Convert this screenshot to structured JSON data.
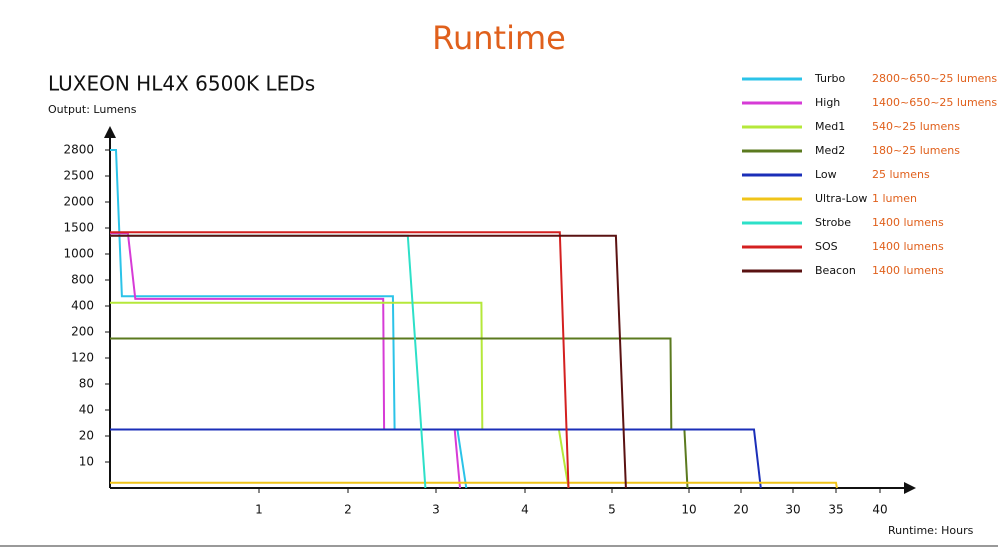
{
  "chart_data": {
    "type": "line",
    "title": "Runtime",
    "subtitle": "LUXEON HL4X 6500K LEDs",
    "y_label": "Output: Lumens",
    "x_label": "Runtime: Hours",
    "xlim": [
      0,
      40
    ],
    "ylim": [
      0,
      2800
    ],
    "xticks": [
      1,
      2,
      3,
      4,
      5,
      10,
      20,
      30,
      35,
      40
    ],
    "yticks": [
      10,
      20,
      40,
      80,
      120,
      200,
      400,
      800,
      1000,
      1500,
      2000,
      2500,
      2800
    ],
    "series": [
      {
        "name": "Turbo",
        "note": "2800~650~25 lumens",
        "color": "#2bc3e8",
        "x": [
          0,
          0.04,
          0.08,
          2.51,
          2.53,
          3.24,
          3.34
        ],
        "values": [
          2800,
          2800,
          550,
          550,
          25,
          25,
          0
        ]
      },
      {
        "name": "High",
        "note": "1400~650~25 lumens",
        "color": "#d63bd6",
        "x": [
          0,
          0.12,
          0.17,
          2.4,
          2.41,
          3.21,
          3.27
        ],
        "values": [
          1400,
          1400,
          510,
          510,
          25,
          25,
          0
        ]
      },
      {
        "name": "Med1",
        "note": "540~25 lumens",
        "color": "#b5e83a",
        "x": [
          0,
          3.51,
          3.52,
          4.39,
          4.5
        ],
        "values": [
          450,
          450,
          25,
          25,
          0
        ]
      },
      {
        "name": "Med2",
        "note": "180~25 lumens",
        "color": "#5b7a1f",
        "x": [
          0,
          8.8,
          8.85,
          9.7,
          9.9
        ],
        "values": [
          180,
          180,
          25,
          25,
          0
        ]
      },
      {
        "name": "Low",
        "note": "25 lumens",
        "color": "#1b2fb8",
        "x": [
          0,
          22.5,
          23.8
        ],
        "values": [
          25,
          25,
          0
        ]
      },
      {
        "name": "Ultra-Low",
        "note": "1 lumen",
        "color": "#f0c419",
        "x": [
          0,
          35,
          35.1
        ],
        "values": [
          2,
          2,
          0
        ]
      },
      {
        "name": "Strobe",
        "note": "1400 lumens",
        "color": "#2de0c8",
        "x": [
          0,
          2.68,
          2.88
        ],
        "values": [
          1350,
          1350,
          0
        ]
      },
      {
        "name": "SOS",
        "note": "1400 lumens",
        "color": "#d42020",
        "x": [
          0,
          4.4,
          4.5
        ],
        "values": [
          1420,
          1420,
          0
        ]
      },
      {
        "name": "Beacon",
        "note": "1400 lumens",
        "color": "#5a1212",
        "x": [
          0,
          5.25,
          5.9
        ],
        "values": [
          1350,
          1350,
          0
        ]
      }
    ]
  }
}
